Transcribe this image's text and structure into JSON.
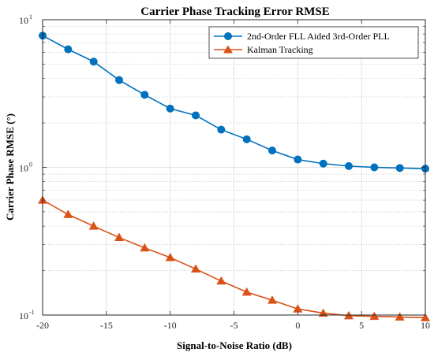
{
  "chart_data": {
    "type": "line",
    "title": "Carrier Phase Tracking Error RMSE",
    "xlabel": "Signal-to-Noise Ratio (dB)",
    "ylabel": "Carrier Phase RMSE (°)",
    "xlim": [
      -20,
      10
    ],
    "ylim": [
      0.1,
      10
    ],
    "yscale": "log",
    "grid": true,
    "legend_position": "top-right",
    "x_ticks": [
      "-20",
      "-15",
      "-10",
      "-5",
      "0",
      "5",
      "10"
    ],
    "y_ticks": [
      {
        "base": "10",
        "exp": "-1",
        "value": 0.1
      },
      {
        "base": "10",
        "exp": "0",
        "value": 1
      },
      {
        "base": "10",
        "exp": "1",
        "value": 10
      }
    ],
    "x": [
      -20,
      -18,
      -16,
      -14,
      -12,
      -10,
      -8,
      -6,
      -4,
      -2,
      0,
      2,
      4,
      6,
      8,
      10
    ],
    "series": [
      {
        "name": "2nd-Order FLL Aided 3rd-Order PLL",
        "color": "#0072BD",
        "marker": "circle",
        "values": [
          7.8,
          6.3,
          5.2,
          3.9,
          3.1,
          2.5,
          2.25,
          1.8,
          1.55,
          1.3,
          1.13,
          1.06,
          1.02,
          1.0,
          0.99,
          0.98
        ]
      },
      {
        "name": "Kalman Tracking",
        "color": "#D95319",
        "marker": "triangle",
        "values": [
          0.6,
          0.48,
          0.4,
          0.335,
          0.285,
          0.245,
          0.205,
          0.17,
          0.143,
          0.126,
          0.11,
          0.103,
          0.099,
          0.098,
          0.097,
          0.096
        ]
      }
    ]
  }
}
